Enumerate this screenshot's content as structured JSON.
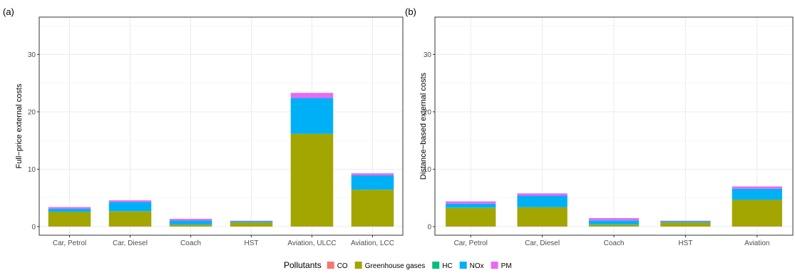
{
  "legend": {
    "title": "Pollutants",
    "items": [
      {
        "name": "CO",
        "color": "#F8766D"
      },
      {
        "name": "Greenhouse gases",
        "color": "#A3A500"
      },
      {
        "name": "HC",
        "color": "#00BF7D"
      },
      {
        "name": "NOx",
        "color": "#00B0F6"
      },
      {
        "name": "PM",
        "color": "#E76BF3"
      }
    ]
  },
  "chart_data": [
    {
      "type": "bar",
      "stacked": true,
      "panel_label": "(a)",
      "title": "",
      "xlabel": "",
      "ylabel": "Full−price external costs",
      "ylim": [
        -1.5,
        36.5
      ],
      "yticks": [
        0,
        10,
        20,
        30
      ],
      "grid": true,
      "categories": [
        "Car, Petrol",
        "Car, Diesel",
        "Coach",
        "HST",
        "Aviation, ULCC",
        "Aviation, LCC"
      ],
      "series": [
        {
          "name": "CO",
          "values": [
            0.05,
            0.05,
            0.02,
            0.01,
            0.05,
            0.02
          ]
        },
        {
          "name": "Greenhouse gases",
          "values": [
            2.5,
            2.6,
            0.3,
            0.7,
            16.1,
            6.4
          ]
        },
        {
          "name": "HC",
          "values": [
            0.05,
            0.03,
            0.03,
            0.02,
            0.05,
            0.02
          ]
        },
        {
          "name": "NOx",
          "values": [
            0.5,
            1.6,
            0.7,
            0.2,
            6.2,
            2.5
          ]
        },
        {
          "name": "PM",
          "values": [
            0.3,
            0.3,
            0.3,
            0.1,
            0.9,
            0.35
          ]
        }
      ]
    },
    {
      "type": "bar",
      "stacked": true,
      "panel_label": "(b)",
      "title": "",
      "xlabel": "",
      "ylabel": "Distance−based external costs",
      "ylim": [
        -1.5,
        36.5
      ],
      "yticks": [
        0,
        10,
        20,
        30
      ],
      "grid": true,
      "categories": [
        "Car, Petrol",
        "Car, Diesel",
        "Coach",
        "HST",
        "Aviation"
      ],
      "series": [
        {
          "name": "CO",
          "values": [
            0.05,
            0.05,
            0.03,
            0.01,
            0.05
          ]
        },
        {
          "name": "Greenhouse gases",
          "values": [
            3.2,
            3.3,
            0.3,
            0.7,
            4.6
          ]
        },
        {
          "name": "HC",
          "values": [
            0.05,
            0.04,
            0.05,
            0.02,
            0.05
          ]
        },
        {
          "name": "NOx",
          "values": [
            0.7,
            2.0,
            0.7,
            0.2,
            1.9
          ]
        },
        {
          "name": "PM",
          "values": [
            0.4,
            0.4,
            0.4,
            0.1,
            0.4
          ]
        }
      ]
    }
  ]
}
